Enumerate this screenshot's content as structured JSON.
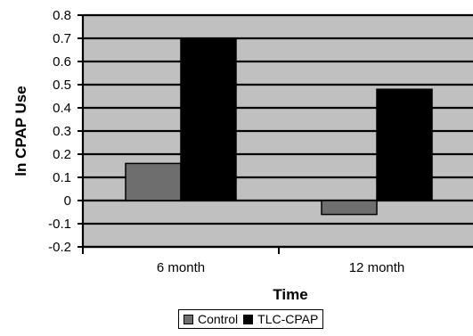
{
  "chart_data": {
    "type": "bar",
    "categories": [
      "6 month",
      "12 month"
    ],
    "series": [
      {
        "name": "Control",
        "values": [
          0.16,
          -0.06
        ],
        "color": "#6e6e6e"
      },
      {
        "name": "TLC-CPAP",
        "values": [
          0.7,
          0.48
        ],
        "color": "#000000"
      }
    ],
    "xlabel": "Time",
    "ylabel": "ln CPAP Use",
    "ylim": [
      -0.2,
      0.8
    ],
    "yticks": [
      "0.8",
      "0.7",
      "0.6",
      "0.5",
      "0.4",
      "0.3",
      "0.2",
      "0.1",
      "0",
      "-0.1",
      "-0.2"
    ],
    "grid": true,
    "plot_background": "#c0c0c0",
    "legend_position": "bottom"
  }
}
